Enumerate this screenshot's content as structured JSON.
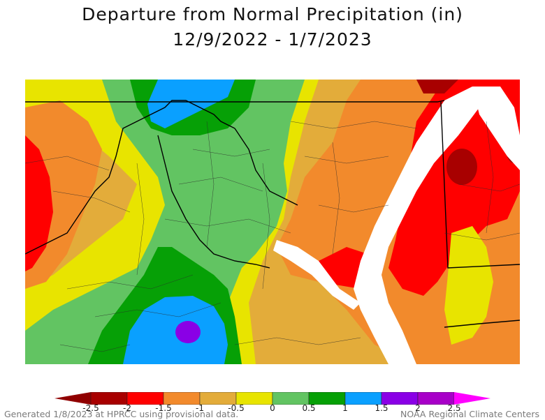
{
  "title": {
    "line1": "Departure from Normal Precipitation (in)",
    "line2": "12/9/2022 - 1/7/2023"
  },
  "legend": {
    "ticks": [
      "-2.5",
      "-2",
      "-1.5",
      "-1",
      "-0.5",
      "0",
      "0.5",
      "1",
      "1.5",
      "2",
      "2.5"
    ],
    "colors": [
      "#a80000",
      "#ff0000",
      "#f28a2c",
      "#e3ac3a",
      "#e8e400",
      "#62c462",
      "#06a006",
      "#0aa0ff",
      "#8a00e6",
      "#a800c8"
    ],
    "low_arrow_color": "#900000",
    "high_arrow_color": "#ff00ff"
  },
  "footer": {
    "left": "Generated 1/8/2023 at HPRCC using provisional data.",
    "right": "NOAA Regional Climate Centers"
  },
  "map_colors": {
    "water": "#ffffff",
    "border": "#000000",
    "county": "#2a2a2a"
  }
}
